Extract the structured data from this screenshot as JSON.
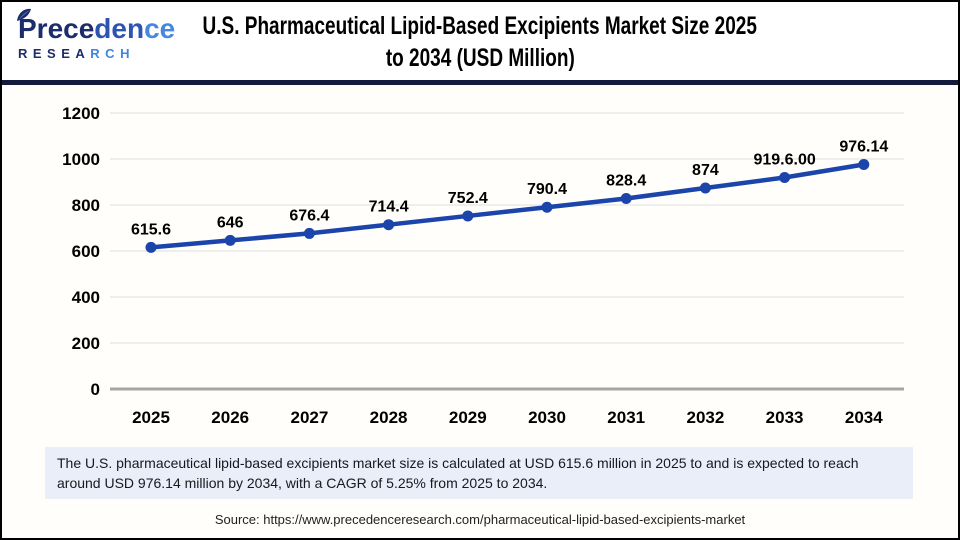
{
  "header": {
    "logo": {
      "brand_part1": "Prece",
      "brand_part2": "den",
      "brand_part3": "ce",
      "research_part1": "RESEA",
      "research_part2": "RCH"
    },
    "title_line1": "U.S. Pharmaceutical Lipid-Based Excipients Market Size 2025",
    "title_line2": "to 2034 (USD Million)"
  },
  "chart_data": {
    "type": "line",
    "title": "U.S. Pharmaceutical Lipid-Based Excipients Market Size 2025 to 2034 (USD Million)",
    "unit": "USD Million",
    "categories": [
      "2025",
      "2026",
      "2027",
      "2028",
      "2029",
      "2030",
      "2031",
      "2032",
      "2033",
      "2034"
    ],
    "values": [
      615.6,
      646,
      676.4,
      714.4,
      752.4,
      790.4,
      828.4,
      874,
      919.6,
      976.14
    ],
    "point_labels": [
      "615.6",
      "646",
      "676.4",
      "714.4",
      "752.4",
      "790.4",
      "828.4",
      "874",
      "919.6.00",
      "976.14"
    ],
    "xlabel": "",
    "ylabel": "",
    "ylim": [
      0,
      1200
    ],
    "yticks": [
      0,
      200,
      400,
      600,
      800,
      1000,
      1200
    ],
    "grid": true,
    "legend_position": "none",
    "line_color": "#1b45ab",
    "grid_color": "#e4e4e4",
    "axis_color": "#a6a6a6",
    "label_color": "#000000"
  },
  "summary": {
    "text": "The U.S. pharmaceutical lipid-based excipients market size is calculated at USD 615.6 million in 2025 to and is expected to reach around USD 976.14 million by 2034, with a CAGR of 5.25% from 2025 to 2034."
  },
  "source": {
    "text": "Source: https://www.precedenceresearch.com/pharmaceutical-lipid-based-excipients-market"
  },
  "colors": {
    "header_divider": "#131b3d",
    "summary_bg": "#e9eef8",
    "logo_dark": "#1d2d6b",
    "logo_light": "#3f86e0"
  }
}
